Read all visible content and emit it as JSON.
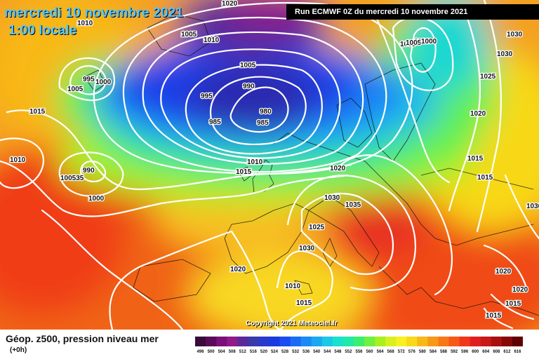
{
  "header": {
    "date": "mercredi 10 novembre 2021",
    "time": "1:00 locale",
    "run": "Run ECMWF 0Z du mercredi 10 novembre 2021"
  },
  "copyright": "Copyright 2021 Meteociel.fr",
  "footer": {
    "parameter": "Géop. z500, pression niveau mer",
    "step": "(+0h)"
  },
  "legend": {
    "values": [
      "496",
      "500",
      "504",
      "508",
      "512",
      "516",
      "520",
      "524",
      "528",
      "532",
      "536",
      "540",
      "544",
      "548",
      "552",
      "556",
      "560",
      "564",
      "568",
      "572",
      "576",
      "580",
      "584",
      "588",
      "592",
      "596",
      "600",
      "604",
      "608",
      "612",
      "616"
    ],
    "colors": [
      "#3a0a3a",
      "#5a0a5a",
      "#7a107a",
      "#901a8a",
      "#5a2a9a",
      "#3a3aaa",
      "#2a3acc",
      "#1a3ae0",
      "#1a4af0",
      "#1a6af5",
      "#1a8af5",
      "#1aa8f0",
      "#1ac8e8",
      "#1ae0d0",
      "#22e8a8",
      "#3aee70",
      "#70f040",
      "#a8f020",
      "#d8f020",
      "#f8f020",
      "#f8d818",
      "#f8b818",
      "#f89818",
      "#f87818",
      "#f85818",
      "#f03818",
      "#e02020",
      "#c81818",
      "#a81010",
      "#880808",
      "#600000"
    ]
  },
  "isobar_labels": [
    {
      "text": "1020"
    },
    {
      "text": "1010"
    },
    {
      "text": "1005"
    },
    {
      "text": "1010"
    },
    {
      "text": "1005"
    },
    {
      "text": "1000"
    },
    {
      "text": "1005"
    },
    {
      "text": "990"
    },
    {
      "text": "995"
    },
    {
      "text": "980"
    },
    {
      "text": "985"
    },
    {
      "text": "985"
    },
    {
      "text": "995"
    },
    {
      "text": "1000"
    },
    {
      "text": "1005"
    },
    {
      "text": "1015"
    },
    {
      "text": "1010"
    },
    {
      "text": "990"
    },
    {
      "text": "100535"
    },
    {
      "text": "1000"
    },
    {
      "text": "1010"
    },
    {
      "text": "1015"
    },
    {
      "text": "1020"
    },
    {
      "text": "1030"
    },
    {
      "text": "1035"
    },
    {
      "text": "1025"
    },
    {
      "text": "1030"
    },
    {
      "text": "1020"
    },
    {
      "text": "1010"
    },
    {
      "text": "1015"
    },
    {
      "text": "1005"
    },
    {
      "text": "1000"
    },
    {
      "text": "1030"
    },
    {
      "text": "1030"
    },
    {
      "text": "1025"
    },
    {
      "text": "1020"
    },
    {
      "text": "1015"
    },
    {
      "text": "1015"
    },
    {
      "text": "1030"
    },
    {
      "text": "1020"
    },
    {
      "text": "1020"
    },
    {
      "text": "1015"
    },
    {
      "text": "1015"
    }
  ]
}
